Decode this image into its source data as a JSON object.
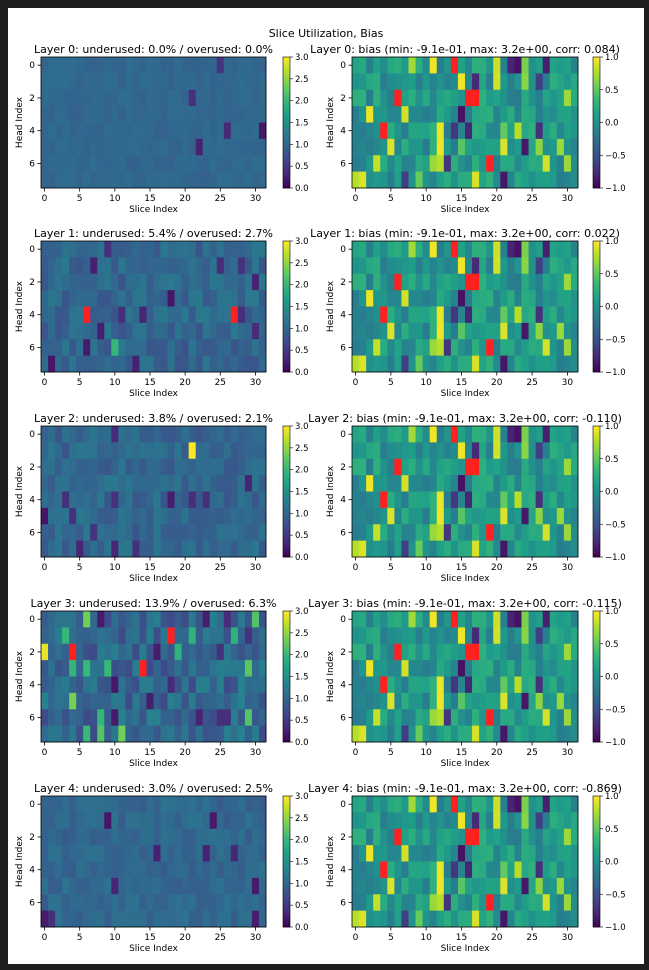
{
  "chart_data": {
    "type": "heatmap",
    "suptitle": "Slice Utilization, Bias",
    "colormap": "viridis",
    "overflow_color": "#ff2020",
    "x_ticks": [
      "0",
      "5",
      "10",
      "15",
      "20",
      "25",
      "30"
    ],
    "y_ticks": [
      "0",
      "2",
      "4",
      "6"
    ],
    "xlabel": "Slice Index",
    "ylabel": "Head Index",
    "n_slices": 32,
    "n_heads": 8,
    "util_colorbar": {
      "vmin": 0.0,
      "vmax": 3.0,
      "ticks": [
        "0.0",
        "0.5",
        "1.0",
        "1.5",
        "2.0",
        "2.5",
        "3.0"
      ]
    },
    "bias_colorbar": {
      "vmin": -1.0,
      "vmax": 1.0,
      "ticks": [
        "1.0",
        "0.5",
        "0.0",
        "−0.5",
        "−1.0"
      ]
    },
    "bias_hot_cells": [
      [
        0,
        14
      ],
      [
        2,
        6
      ],
      [
        2,
        16
      ],
      [
        2,
        17
      ],
      [
        4,
        4
      ],
      [
        6,
        19
      ]
    ],
    "layers": [
      {
        "util_title": "Layer 0: underused: 0.0% / overused: 0.0%",
        "bias_title": "Layer 0: bias (min: -9.1e-01, max: 3.2e+00, corr: 0.084)",
        "util_hot_cells": []
      },
      {
        "util_title": "Layer 1: underused: 5.4% / overused: 2.7%",
        "bias_title": "Layer 1: bias (min: -9.1e-01, max: 3.2e+00, corr: 0.022)",
        "util_hot_cells": [
          [
            4,
            6
          ],
          [
            4,
            27
          ]
        ]
      },
      {
        "util_title": "Layer 2: underused: 3.8% / overused: 2.1%",
        "bias_title": "Layer 2: bias (min: -9.1e-01, max: 3.2e+00, corr: -0.110)",
        "util_hot_cells": []
      },
      {
        "util_title": "Layer 3: underused: 13.9% / overused: 6.3%",
        "bias_title": "Layer 3: bias (min: -9.1e-01, max: 3.2e+00, corr: -0.115)",
        "util_hot_cells": [
          [
            1,
            18
          ],
          [
            2,
            4
          ],
          [
            3,
            14
          ]
        ]
      },
      {
        "util_title": "Layer 4: underused: 3.0% / overused: 2.5%",
        "bias_title": "Layer 4: bias (min: -9.1e-01, max: 3.2e+00, corr: -0.869)",
        "util_hot_cells": []
      }
    ]
  }
}
